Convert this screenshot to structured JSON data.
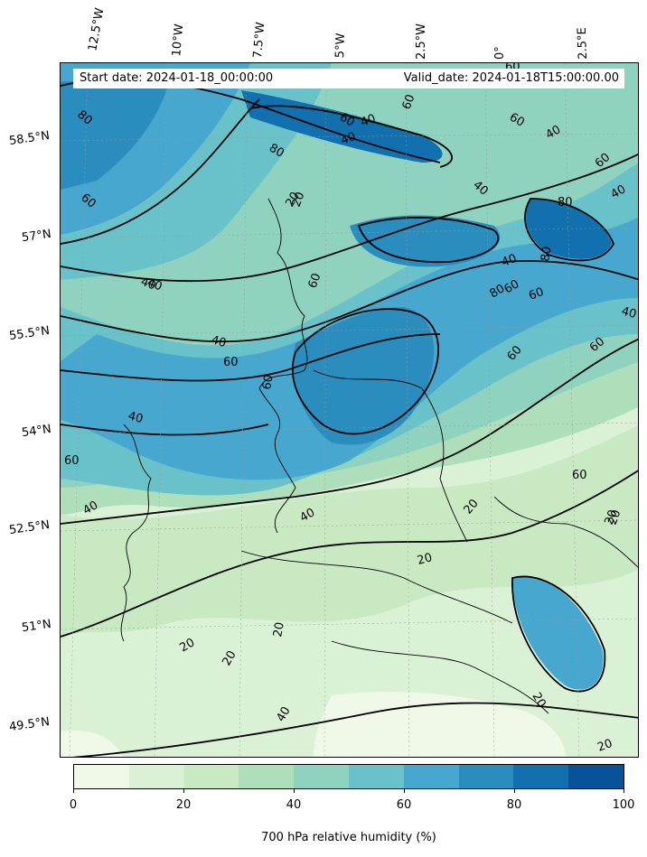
{
  "header": {
    "start_date": "Start date: 2024-01-18_00:00:00",
    "valid_date": "Valid_date: 2024-01-18T15:00:00.00"
  },
  "longitude_labels": [
    "12.5°W",
    "10°W",
    "7.5°W",
    "5°W",
    "2.5°W",
    "0°",
    "2.5°E"
  ],
  "latitude_labels": [
    "58.5°N",
    "57°N",
    "55.5°N",
    "54°N",
    "52.5°N",
    "51°N",
    "49.5°N"
  ],
  "contour_labels": [
    "80",
    "60",
    "40",
    "20",
    "60",
    "40",
    "60",
    "80",
    "40",
    "60",
    "60",
    "40",
    "80",
    "60",
    "40",
    "60",
    "40",
    "40",
    "60",
    "80",
    "80",
    "60",
    "40",
    "60",
    "60",
    "60",
    "40",
    "60",
    "40",
    "20",
    "20",
    "20",
    "20",
    "20",
    "40",
    "40",
    "20",
    "60",
    "40",
    "20",
    "40",
    "20",
    "60",
    "20",
    "20"
  ],
  "colorbar": {
    "label": "700 hPa relative humidity (%)",
    "ticks": [
      "0",
      "20",
      "40",
      "60",
      "80",
      "100"
    ],
    "colors": [
      "#f0f9e8",
      "#dbf1d6",
      "#c9e9c3",
      "#afdfba",
      "#8ed2bf",
      "#69c2ca",
      "#48a7cf",
      "#2b8cbe",
      "#1170ad",
      "#08529a"
    ]
  }
}
